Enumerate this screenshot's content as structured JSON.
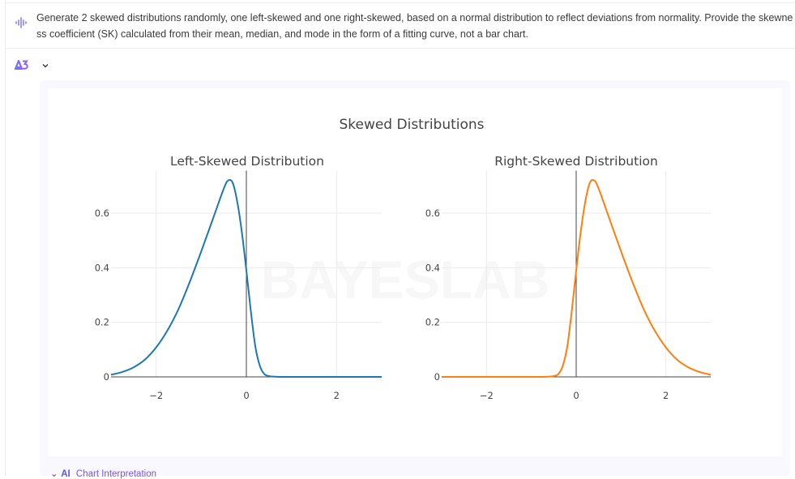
{
  "prompt": {
    "icon": "voice-wave-icon",
    "text": "Generate 2 skewed distributions randomly, one left-skewed and one right-skewed, based on a normal distribution to reflect deviations from normality. Provide the skewness coefficient (SK) calculated from their mean, median, and mode in the form of a fitting curve, not a bar chart."
  },
  "assistant": {
    "logo_icon": "bayeslab-logo-icon",
    "toggle_icon": "chevron-down-icon"
  },
  "watermark": "BAYESLAB",
  "footer": {
    "toggle_icon": "chevron-down-icon",
    "ai_icon": "AI",
    "label": "Chart Interpretation"
  },
  "chart_data": [
    {
      "type": "line",
      "title": "Left-Skewed Distribution",
      "figure_title": "Skewed Distributions",
      "xlabel": "",
      "ylabel": "",
      "xlim": [
        -3,
        3
      ],
      "ylim": [
        0,
        0.75
      ],
      "xticks": [
        -2,
        0,
        2
      ],
      "yticks": [
        0,
        0.2,
        0.4,
        0.6
      ],
      "grid": true,
      "color": "#1f77b4",
      "x": [
        -3.0,
        -2.75,
        -2.5,
        -2.25,
        -2.0,
        -1.75,
        -1.5,
        -1.25,
        -1.0,
        -0.75,
        -0.5,
        -0.4,
        -0.3,
        -0.2,
        -0.1,
        0.0,
        0.1,
        0.2,
        0.3,
        0.4,
        0.5,
        0.6,
        0.75,
        1.0,
        1.5,
        2.0,
        2.5,
        3.0
      ],
      "y": [
        0.008,
        0.018,
        0.035,
        0.063,
        0.108,
        0.17,
        0.25,
        0.35,
        0.46,
        0.575,
        0.69,
        0.72,
        0.71,
        0.64,
        0.53,
        0.39,
        0.24,
        0.11,
        0.04,
        0.01,
        0.003,
        0.001,
        0.0,
        0.0,
        0.0,
        0.0,
        0.0,
        0.0
      ]
    },
    {
      "type": "line",
      "title": "Right-Skewed Distribution",
      "xlabel": "",
      "ylabel": "",
      "xlim": [
        -3,
        3
      ],
      "ylim": [
        0,
        0.75
      ],
      "xticks": [
        -2,
        0,
        2
      ],
      "yticks": [
        0,
        0.2,
        0.4,
        0.6
      ],
      "grid": true,
      "color": "#ff7f0e",
      "x": [
        -3.0,
        -2.5,
        -2.0,
        -1.5,
        -1.0,
        -0.75,
        -0.6,
        -0.5,
        -0.4,
        -0.3,
        -0.2,
        -0.1,
        0.0,
        0.1,
        0.2,
        0.3,
        0.4,
        0.5,
        0.75,
        1.0,
        1.25,
        1.5,
        1.75,
        2.0,
        2.25,
        2.5,
        2.75,
        3.0
      ],
      "y": [
        0.0,
        0.0,
        0.0,
        0.0,
        0.0,
        0.0,
        0.001,
        0.003,
        0.01,
        0.04,
        0.11,
        0.24,
        0.39,
        0.53,
        0.64,
        0.71,
        0.72,
        0.69,
        0.575,
        0.46,
        0.35,
        0.25,
        0.17,
        0.108,
        0.063,
        0.035,
        0.018,
        0.008
      ]
    }
  ]
}
